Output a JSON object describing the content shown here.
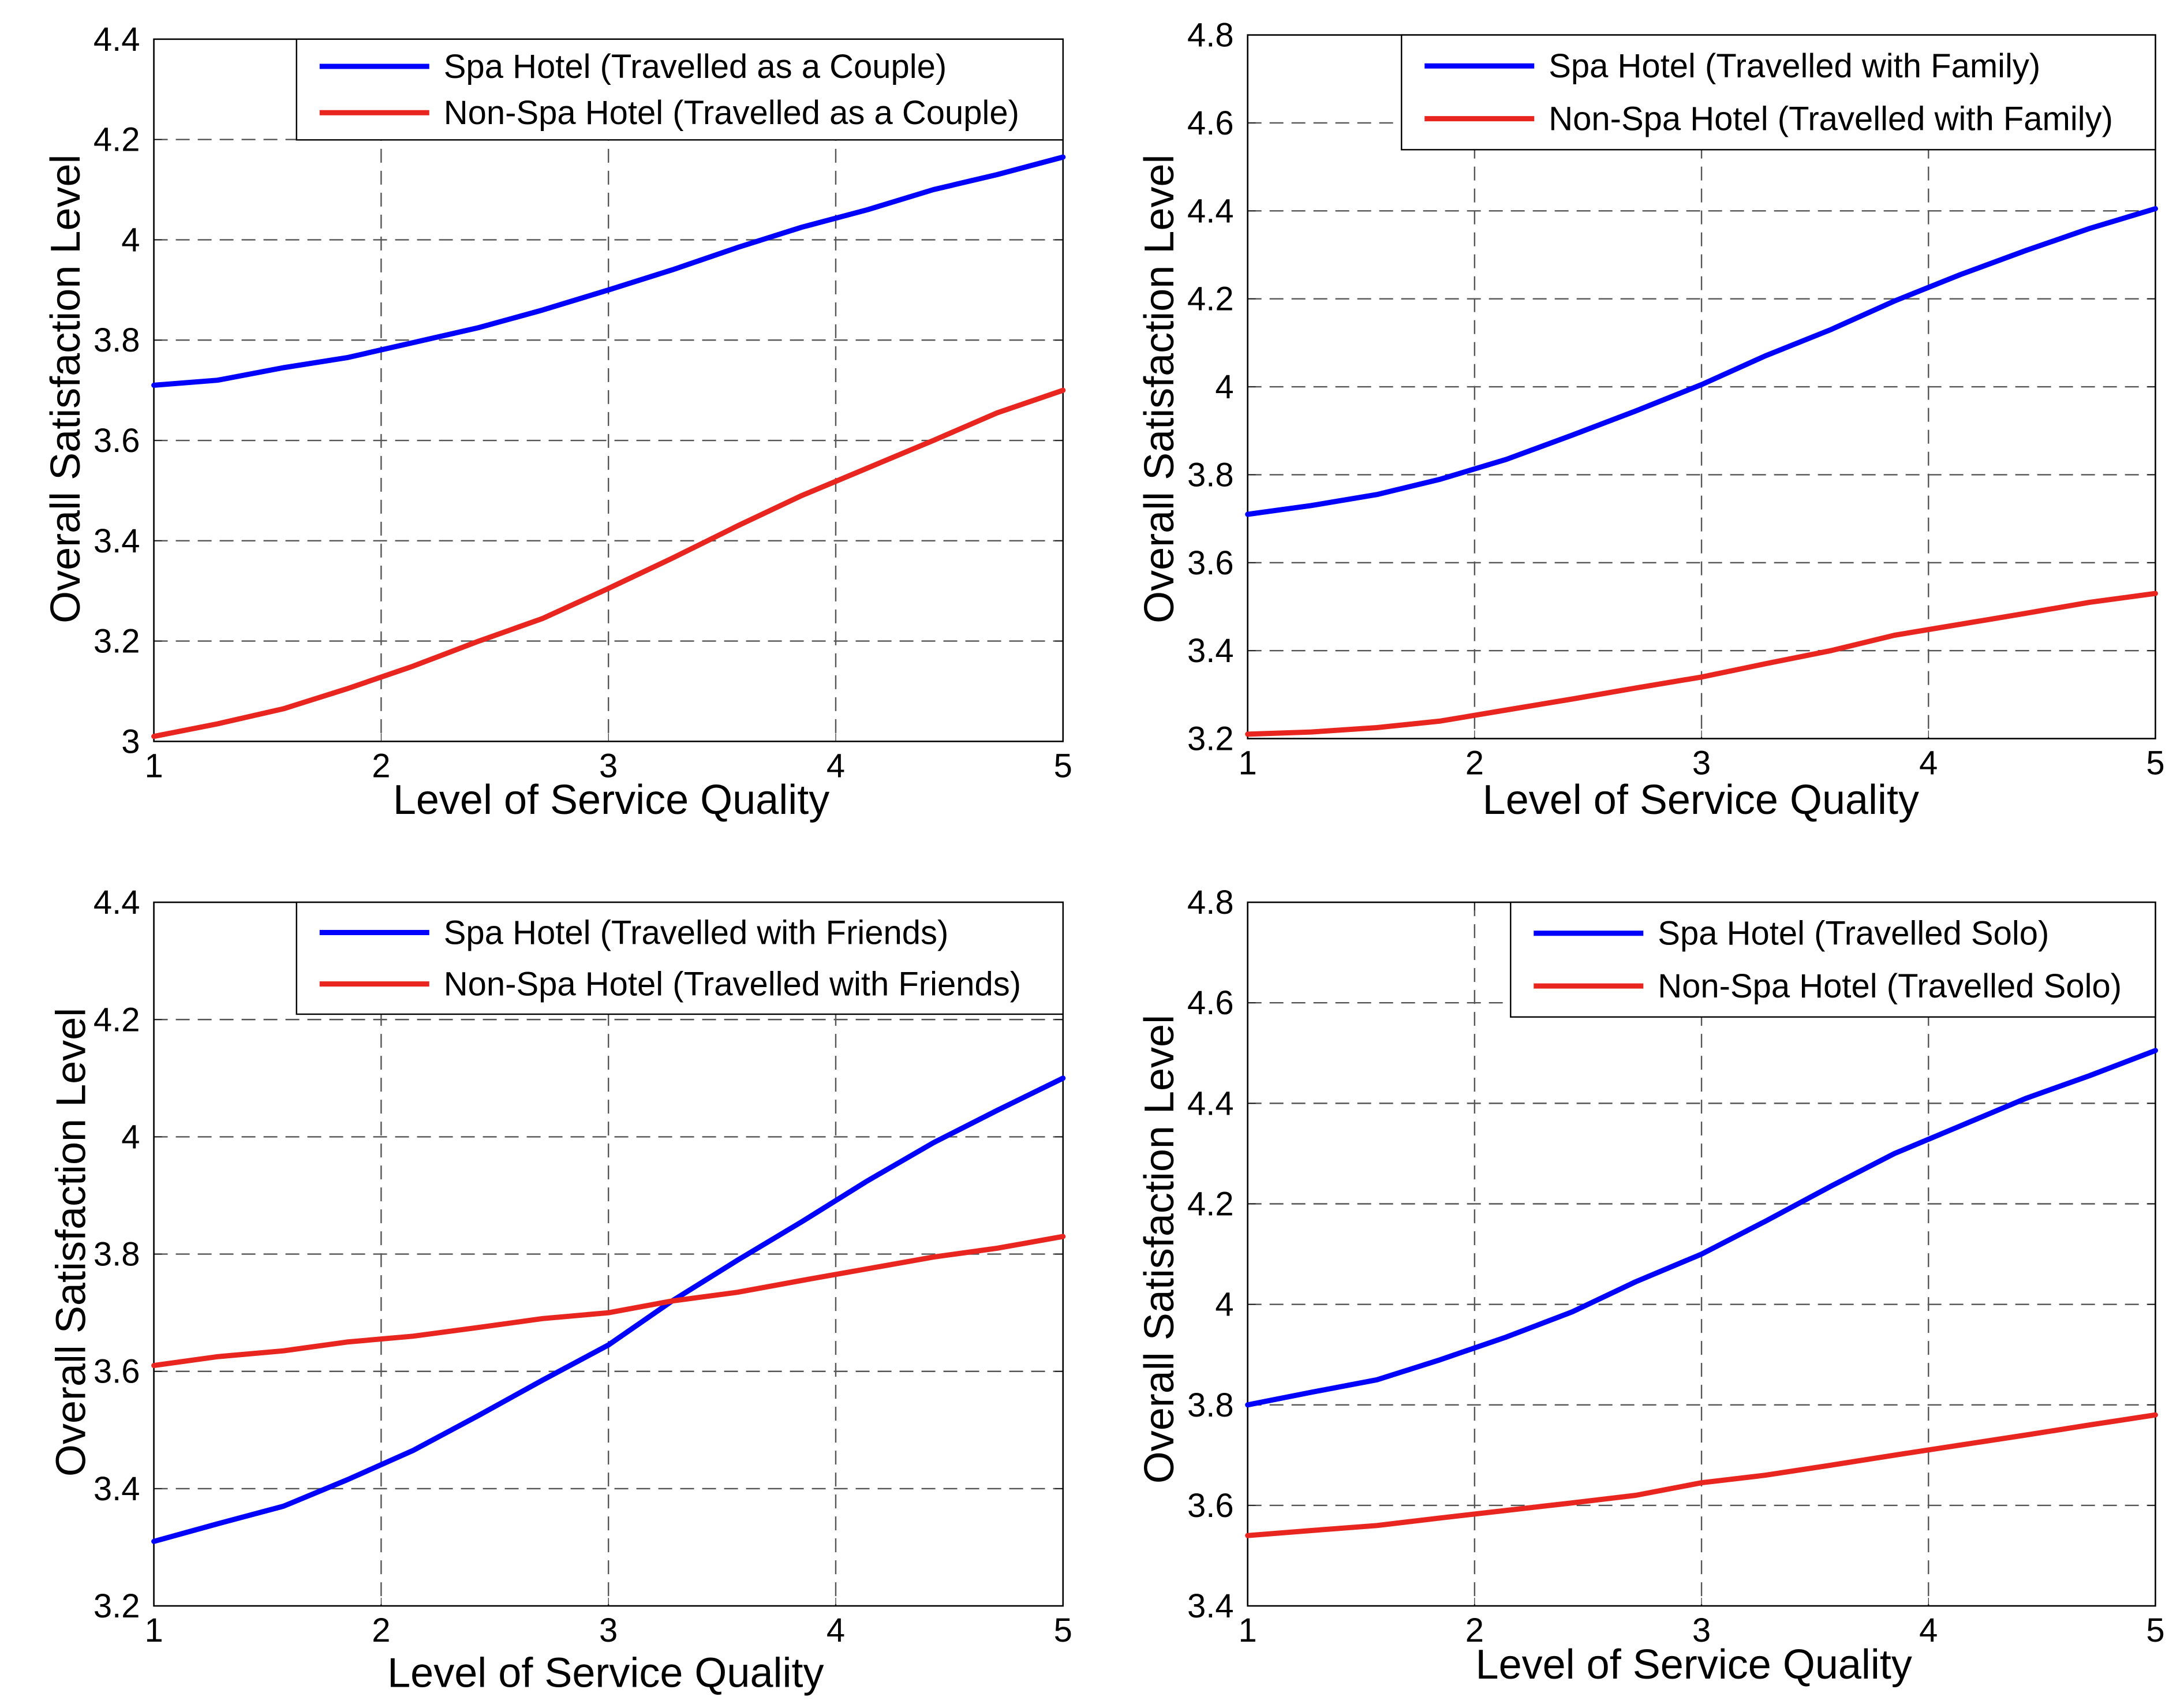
{
  "colors": {
    "spa": "#0000ff",
    "non_spa": "#e8251f",
    "grid": "#555555",
    "axis": "#000000"
  },
  "chart_data": [
    {
      "type": "line",
      "xlabel": "Level of Service Quality",
      "ylabel": "Overall Satisfaction Level",
      "xlim": [
        1,
        5
      ],
      "ylim": [
        3,
        4.4
      ],
      "xticks": [
        "1",
        "2",
        "3",
        "4",
        "5"
      ],
      "yticks": [
        "3",
        "3.2",
        "3.4",
        "3.6",
        "3.8",
        "4",
        "4.2",
        "4.4"
      ],
      "grid": true,
      "legend_position": "top-right",
      "x": [
        1,
        1.28,
        1.57,
        1.85,
        2.14,
        2.43,
        2.71,
        3.0,
        3.28,
        3.57,
        3.85,
        4.14,
        4.43,
        4.71,
        5.0
      ],
      "series": [
        {
          "name": "Spa Hotel (Travelled as a Couple)",
          "color_key": "spa",
          "values": [
            3.71,
            3.72,
            3.745,
            3.765,
            3.795,
            3.825,
            3.86,
            3.9,
            3.94,
            3.985,
            4.025,
            4.06,
            4.1,
            4.13,
            4.165
          ]
        },
        {
          "name": "Non-Spa Hotel (Travelled as a Couple)",
          "color_key": "non_spa",
          "values": [
            3.01,
            3.035,
            3.065,
            3.105,
            3.15,
            3.2,
            3.245,
            3.305,
            3.365,
            3.43,
            3.49,
            3.545,
            3.6,
            3.655,
            3.7
          ]
        }
      ]
    },
    {
      "type": "line",
      "xlabel": "Level of Service Quality",
      "ylabel": "Overall Satisfaction Level",
      "xlim": [
        1,
        5
      ],
      "ylim": [
        3.2,
        4.8
      ],
      "xticks": [
        "1",
        "2",
        "3",
        "4",
        "5"
      ],
      "yticks": [
        "3.2",
        "3.4",
        "3.6",
        "3.8",
        "4",
        "4.2",
        "4.4",
        "4.6",
        "4.8"
      ],
      "grid": true,
      "legend_position": "top-right",
      "x": [
        1,
        1.28,
        1.57,
        1.85,
        2.14,
        2.43,
        2.71,
        3.0,
        3.28,
        3.57,
        3.85,
        4.14,
        4.43,
        4.71,
        5.0
      ],
      "series": [
        {
          "name": "Spa Hotel (Travelled with Family)",
          "color_key": "spa",
          "values": [
            3.71,
            3.73,
            3.755,
            3.79,
            3.835,
            3.89,
            3.945,
            4.005,
            4.07,
            4.13,
            4.195,
            4.255,
            4.31,
            4.36,
            4.405
          ]
        },
        {
          "name": "Non-Spa Hotel (Travelled with Family)",
          "color_key": "non_spa",
          "values": [
            3.21,
            3.215,
            3.225,
            3.24,
            3.265,
            3.29,
            3.315,
            3.34,
            3.37,
            3.4,
            3.435,
            3.46,
            3.485,
            3.51,
            3.53
          ]
        }
      ]
    },
    {
      "type": "line",
      "xlabel": "Level of Service Quality",
      "ylabel": "Overall Satisfaction Level",
      "xlim": [
        1,
        5
      ],
      "ylim": [
        3.2,
        4.4
      ],
      "xticks": [
        "1",
        "2",
        "3",
        "4",
        "5"
      ],
      "yticks": [
        "3.2",
        "3.4",
        "3.6",
        "3.8",
        "4",
        "4.2",
        "4.4"
      ],
      "grid": true,
      "legend_position": "top-right",
      "x": [
        1,
        1.28,
        1.57,
        1.85,
        2.14,
        2.43,
        2.71,
        3.0,
        3.28,
        3.57,
        3.85,
        4.14,
        4.43,
        4.71,
        5.0
      ],
      "series": [
        {
          "name": "Spa Hotel (Travelled with Friends)",
          "color_key": "spa",
          "values": [
            3.31,
            3.34,
            3.37,
            3.415,
            3.465,
            3.525,
            3.585,
            3.645,
            3.72,
            3.79,
            3.855,
            3.925,
            3.99,
            4.045,
            4.1
          ]
        },
        {
          "name": "Non-Spa Hotel (Travelled with Friends)",
          "color_key": "non_spa",
          "values": [
            3.61,
            3.625,
            3.635,
            3.65,
            3.66,
            3.675,
            3.69,
            3.7,
            3.72,
            3.735,
            3.755,
            3.775,
            3.795,
            3.81,
            3.83
          ]
        }
      ]
    },
    {
      "type": "line",
      "xlabel": "Level of Service Quality",
      "ylabel": "Overall Satisfaction Level",
      "xlim": [
        1,
        5
      ],
      "ylim": [
        3.4,
        4.8
      ],
      "xticks": [
        "1",
        "2",
        "3",
        "4",
        "5"
      ],
      "yticks": [
        "3.4",
        "3.6",
        "3.8",
        "4",
        "4.2",
        "4.4",
        "4.6",
        "4.8"
      ],
      "grid": true,
      "legend_position": "top-right",
      "x": [
        1,
        1.28,
        1.57,
        1.85,
        2.14,
        2.43,
        2.71,
        3.0,
        3.28,
        3.57,
        3.85,
        4.14,
        4.43,
        4.71,
        5.0
      ],
      "series": [
        {
          "name": "Spa Hotel (Travelled Solo)",
          "color_key": "spa",
          "values": [
            3.8,
            3.825,
            3.85,
            3.89,
            3.935,
            3.985,
            4.045,
            4.1,
            4.165,
            4.235,
            4.3,
            4.355,
            4.41,
            4.455,
            4.505
          ]
        },
        {
          "name": "Non-Spa Hotel (Travelled Solo)",
          "color_key": "non_spa",
          "values": [
            3.54,
            3.55,
            3.56,
            3.575,
            3.59,
            3.605,
            3.62,
            3.645,
            3.66,
            3.68,
            3.7,
            3.72,
            3.74,
            3.76,
            3.78
          ]
        }
      ]
    }
  ]
}
